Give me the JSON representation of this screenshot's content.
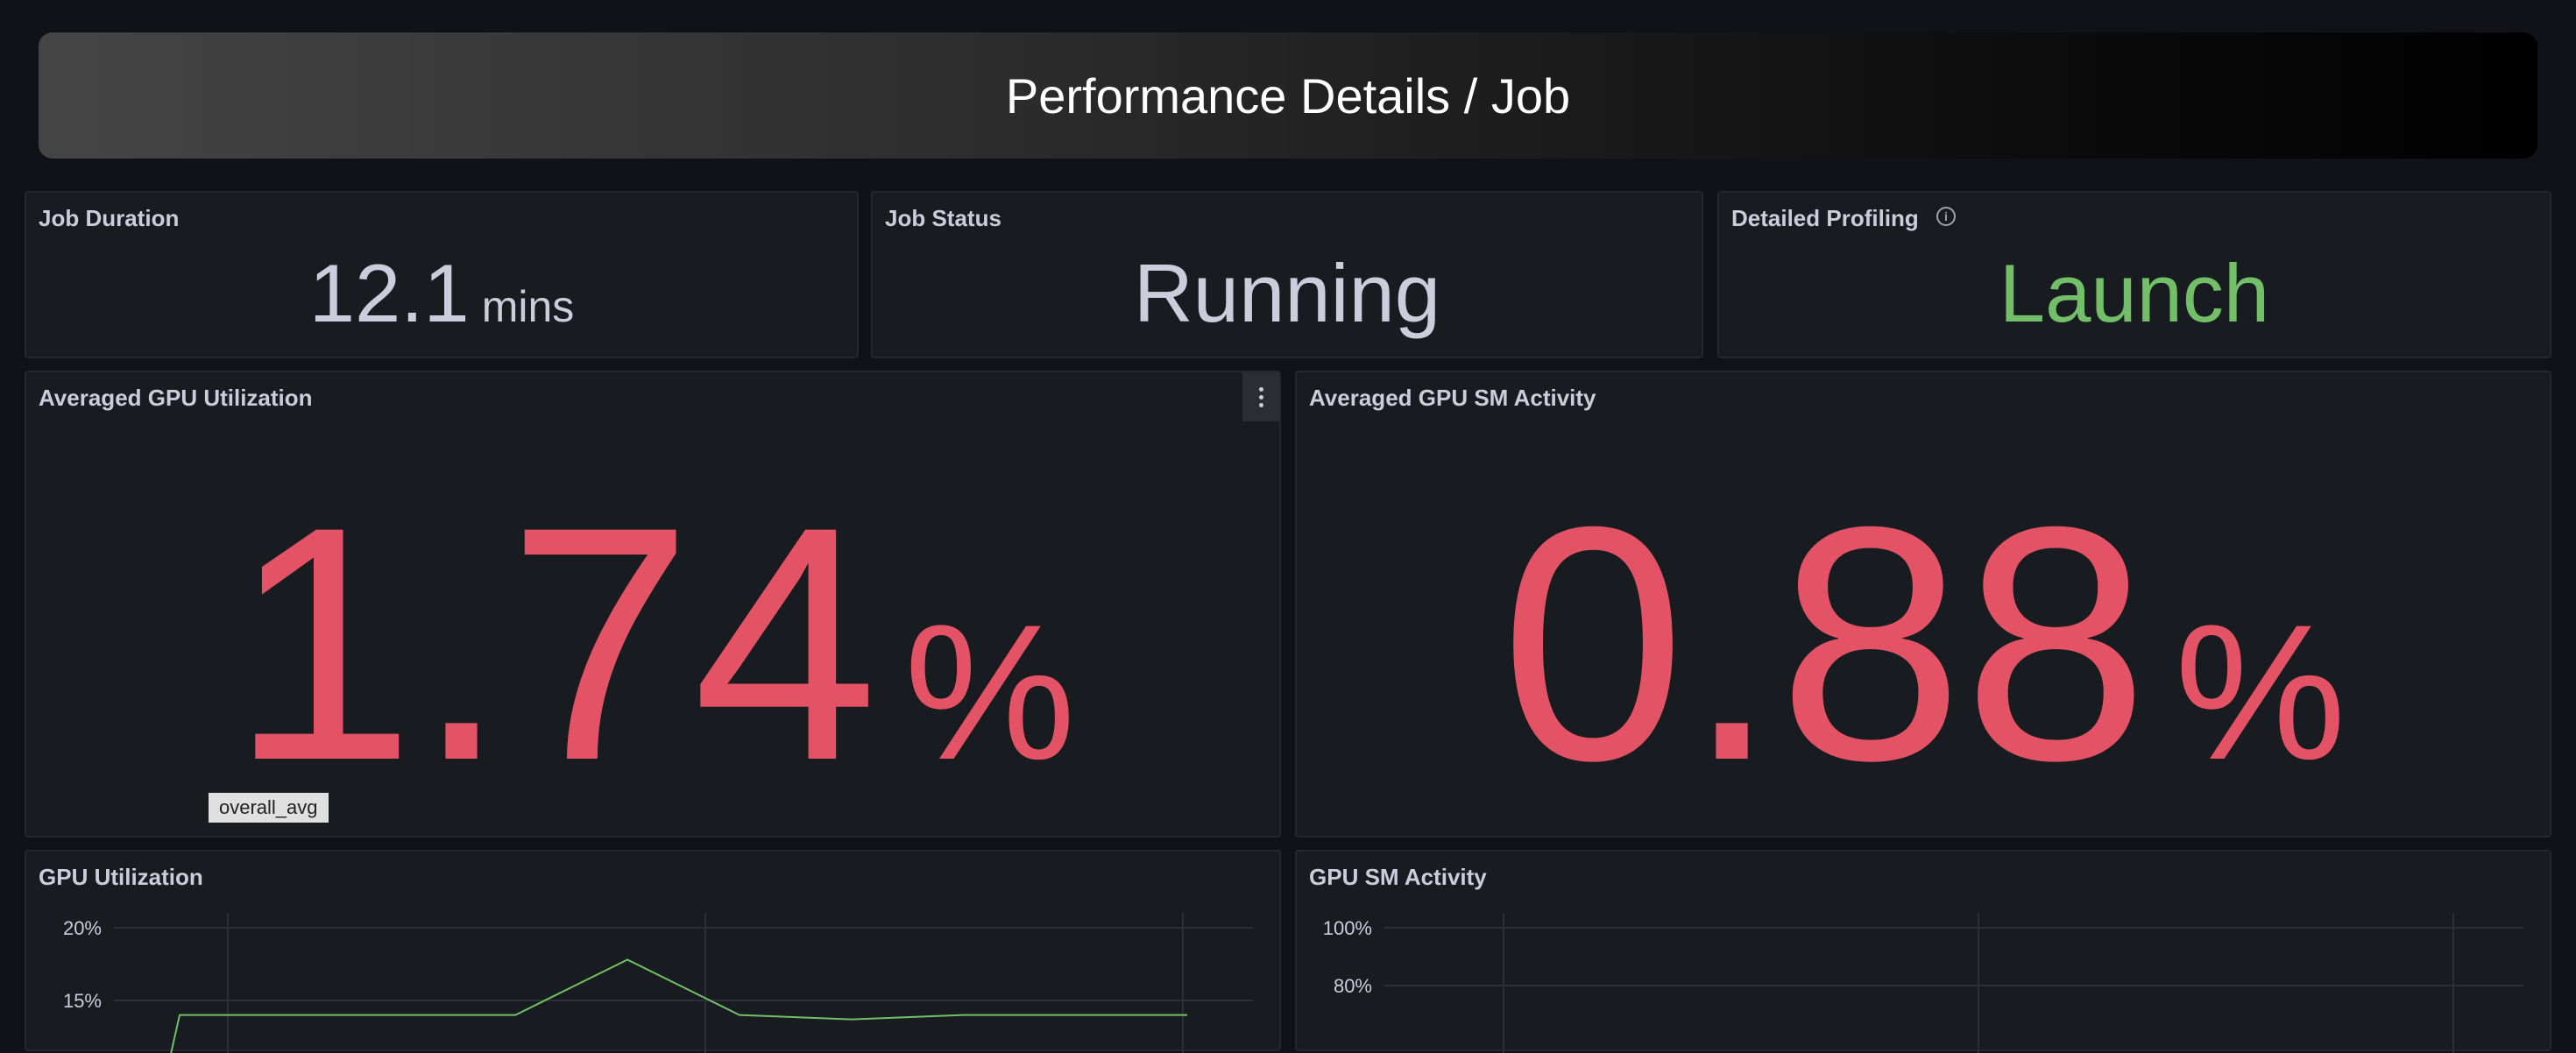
{
  "header": {
    "title": "Performance Details / Job"
  },
  "panels": {
    "job_duration": {
      "title": "Job Duration",
      "value": "12.1",
      "unit": "mins"
    },
    "job_status": {
      "title": "Job Status",
      "value": "Running"
    },
    "detailed_profiling": {
      "title": "Detailed Profiling",
      "value": "Launch",
      "info_icon": "i"
    },
    "avg_gpu_util": {
      "title": "Averaged GPU Utilization",
      "value": "1.74",
      "unit": "%",
      "legend_tag": "overall_avg"
    },
    "avg_gpu_sm": {
      "title": "Averaged GPU SM Activity",
      "value": "0.88",
      "unit": "%"
    },
    "gpu_util": {
      "title": "GPU Utilization"
    },
    "gpu_sm": {
      "title": "GPU SM Activity"
    }
  },
  "colors": {
    "value_default": "#ccccdc",
    "value_red": "#e35365",
    "value_green": "#73bf69",
    "series_green": "#73bf69"
  },
  "chart_data": [
    {
      "type": "line",
      "title": "GPU Utilization",
      "y_ticks": [
        "20%",
        "15%"
      ],
      "ylim": [
        10,
        20
      ],
      "grid": true,
      "series": [
        {
          "values": [
            14,
            14,
            14,
            14,
            17.8,
            14,
            13.7,
            14,
            14,
            14
          ]
        }
      ]
    },
    {
      "type": "line",
      "title": "GPU SM Activity",
      "y_ticks": [
        "100%",
        "80%"
      ],
      "ylim": [
        60,
        100
      ],
      "grid": true,
      "series": []
    }
  ]
}
